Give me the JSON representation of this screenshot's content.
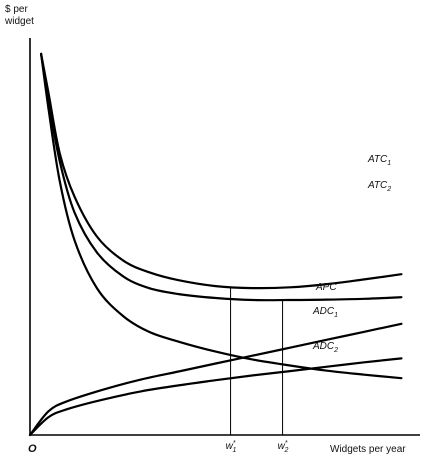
{
  "chart_data": {
    "type": "line",
    "ylabel": "$ per\nwidget",
    "xlabel": "Widgets per year",
    "origin_label": "O",
    "series": [
      {
        "key": "ATC1",
        "name": "ATC",
        "subscript": "1",
        "points": [
          [
            0.03,
            0.96
          ],
          [
            0.05,
            0.86
          ],
          [
            0.08,
            0.71
          ],
          [
            0.12,
            0.6
          ],
          [
            0.18,
            0.5
          ],
          [
            0.25,
            0.44
          ],
          [
            0.32,
            0.41
          ],
          [
            0.4,
            0.39
          ],
          [
            0.5,
            0.375
          ],
          [
            0.6,
            0.37
          ],
          [
            0.7,
            0.372
          ],
          [
            0.8,
            0.38
          ],
          [
            0.9,
            0.392
          ],
          [
            1.0,
            0.405
          ]
        ]
      },
      {
        "key": "ATC2",
        "name": "ATC",
        "subscript": "2",
        "points": [
          [
            0.03,
            0.96
          ],
          [
            0.05,
            0.84
          ],
          [
            0.08,
            0.69
          ],
          [
            0.12,
            0.56
          ],
          [
            0.18,
            0.46
          ],
          [
            0.25,
            0.4
          ],
          [
            0.32,
            0.37
          ],
          [
            0.4,
            0.355
          ],
          [
            0.5,
            0.345
          ],
          [
            0.6,
            0.34
          ],
          [
            0.7,
            0.34
          ],
          [
            0.8,
            0.341
          ],
          [
            0.9,
            0.343
          ],
          [
            1.0,
            0.347
          ]
        ]
      },
      {
        "key": "APC",
        "name": "APC",
        "subscript": "",
        "points": [
          [
            0.03,
            0.96
          ],
          [
            0.05,
            0.82
          ],
          [
            0.08,
            0.64
          ],
          [
            0.12,
            0.49
          ],
          [
            0.18,
            0.37
          ],
          [
            0.25,
            0.3
          ],
          [
            0.32,
            0.26
          ],
          [
            0.4,
            0.235
          ],
          [
            0.5,
            0.21
          ],
          [
            0.6,
            0.19
          ],
          [
            0.7,
            0.175
          ],
          [
            0.8,
            0.162
          ],
          [
            0.9,
            0.152
          ],
          [
            1.0,
            0.143
          ]
        ]
      },
      {
        "key": "ADC1",
        "name": "ADC",
        "subscript": "1",
        "points": [
          [
            0.0,
            0.0
          ],
          [
            0.05,
            0.06
          ],
          [
            0.1,
            0.085
          ],
          [
            0.2,
            0.115
          ],
          [
            0.3,
            0.14
          ],
          [
            0.4,
            0.16
          ],
          [
            0.5,
            0.18
          ],
          [
            0.6,
            0.2
          ],
          [
            0.7,
            0.22
          ],
          [
            0.8,
            0.24
          ],
          [
            0.9,
            0.26
          ],
          [
            1.0,
            0.28
          ]
        ]
      },
      {
        "key": "ADC2",
        "name": "ADC",
        "subscript": "2",
        "points": [
          [
            0.0,
            0.0
          ],
          [
            0.05,
            0.045
          ],
          [
            0.1,
            0.065
          ],
          [
            0.2,
            0.09
          ],
          [
            0.3,
            0.11
          ],
          [
            0.4,
            0.125
          ],
          [
            0.5,
            0.138
          ],
          [
            0.6,
            0.15
          ],
          [
            0.7,
            0.161
          ],
          [
            0.8,
            0.172
          ],
          [
            0.9,
            0.183
          ],
          [
            1.0,
            0.193
          ]
        ]
      }
    ],
    "verticals": [
      {
        "key": "w1",
        "name": "w",
        "superscript": "*",
        "subscript": "1",
        "x": 0.54,
        "from_series": "ATC1"
      },
      {
        "key": "w2",
        "name": "w",
        "superscript": "*",
        "subscript": "2",
        "x": 0.68,
        "from_series": "ATC2"
      }
    ],
    "xlim": [
      0,
      1.05
    ],
    "ylim": [
      0,
      1.0
    ],
    "grid": false,
    "legend": "none"
  }
}
